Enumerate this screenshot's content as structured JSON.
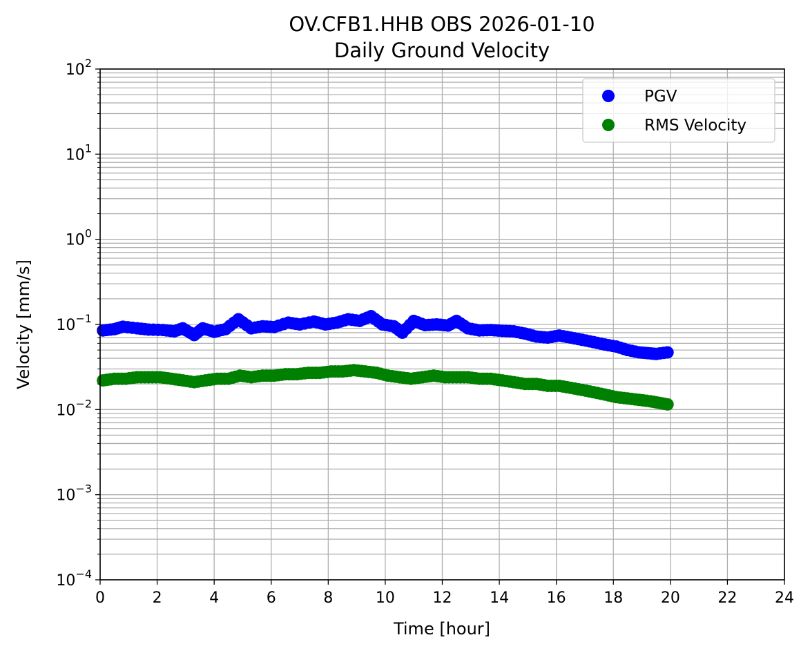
{
  "chart_data": {
    "type": "scatter",
    "title": "OV.CFB1.HHB OBS 2026-01-10",
    "subtitle": "Daily Ground Velocity",
    "xlabel": "Time [hour]",
    "ylabel": "Velocity [mm/s]",
    "xlim": [
      0,
      24
    ],
    "ylim": [
      0.0001,
      100
    ],
    "yscale": "log",
    "x_ticks": [
      "0",
      "2",
      "4",
      "6",
      "8",
      "10",
      "12",
      "14",
      "16",
      "18",
      "20",
      "22",
      "24"
    ],
    "y_ticks": [
      {
        "base": "10",
        "exp": "−4",
        "value": 0.0001
      },
      {
        "base": "10",
        "exp": "−3",
        "value": 0.001
      },
      {
        "base": "10",
        "exp": "−2",
        "value": 0.01
      },
      {
        "base": "10",
        "exp": "−1",
        "value": 0.1
      },
      {
        "base": "10",
        "exp": "0",
        "value": 1
      },
      {
        "base": "10",
        "exp": "1",
        "value": 10
      },
      {
        "base": "10",
        "exp": "2",
        "value": 100
      }
    ],
    "grid": true,
    "legend_position": "top-right",
    "series": [
      {
        "name": "PGV",
        "color": "#0000ff",
        "x": [
          0.1,
          0.5,
          0.8,
          1.3,
          1.7,
          2.2,
          2.6,
          2.9,
          3.3,
          3.6,
          4.0,
          4.4,
          4.85,
          5.3,
          5.7,
          6.1,
          6.6,
          7.0,
          7.5,
          7.9,
          8.3,
          8.7,
          9.1,
          9.5,
          9.9,
          10.3,
          10.6,
          11.0,
          11.4,
          11.8,
          12.2,
          12.5,
          12.9,
          13.3,
          13.7,
          14.1,
          14.5,
          14.9,
          15.3,
          15.7,
          16.1,
          16.5,
          16.9,
          17.3,
          17.7,
          18.1,
          18.5,
          18.9,
          19.2,
          19.5,
          19.9
        ],
        "values": [
          0.085,
          0.088,
          0.094,
          0.09,
          0.087,
          0.086,
          0.083,
          0.09,
          0.075,
          0.09,
          0.082,
          0.088,
          0.115,
          0.09,
          0.095,
          0.093,
          0.105,
          0.1,
          0.108,
          0.1,
          0.105,
          0.115,
          0.11,
          0.125,
          0.1,
          0.095,
          0.08,
          0.11,
          0.098,
          0.1,
          0.097,
          0.11,
          0.09,
          0.085,
          0.086,
          0.084,
          0.083,
          0.078,
          0.072,
          0.07,
          0.074,
          0.07,
          0.066,
          0.062,
          0.058,
          0.055,
          0.05,
          0.047,
          0.046,
          0.045,
          0.047
        ]
      },
      {
        "name": "RMS Velocity",
        "color": "#008000",
        "x": [
          0.1,
          0.5,
          0.9,
          1.3,
          1.7,
          2.1,
          2.5,
          2.9,
          3.3,
          3.7,
          4.1,
          4.5,
          4.9,
          5.3,
          5.7,
          6.1,
          6.5,
          6.9,
          7.3,
          7.7,
          8.1,
          8.5,
          8.9,
          9.3,
          9.7,
          10.1,
          10.5,
          10.9,
          11.3,
          11.7,
          12.1,
          12.5,
          12.9,
          13.3,
          13.7,
          14.1,
          14.5,
          14.9,
          15.3,
          15.7,
          16.1,
          16.5,
          16.9,
          17.3,
          17.7,
          18.1,
          18.5,
          18.9,
          19.3,
          19.6,
          19.9
        ],
        "values": [
          0.022,
          0.023,
          0.023,
          0.024,
          0.024,
          0.024,
          0.023,
          0.022,
          0.021,
          0.022,
          0.023,
          0.023,
          0.025,
          0.024,
          0.025,
          0.025,
          0.026,
          0.026,
          0.027,
          0.027,
          0.028,
          0.028,
          0.029,
          0.028,
          0.027,
          0.025,
          0.024,
          0.023,
          0.024,
          0.025,
          0.024,
          0.024,
          0.024,
          0.023,
          0.023,
          0.022,
          0.021,
          0.02,
          0.02,
          0.019,
          0.019,
          0.018,
          0.017,
          0.016,
          0.015,
          0.014,
          0.0135,
          0.013,
          0.0125,
          0.012,
          0.0115
        ]
      }
    ]
  }
}
